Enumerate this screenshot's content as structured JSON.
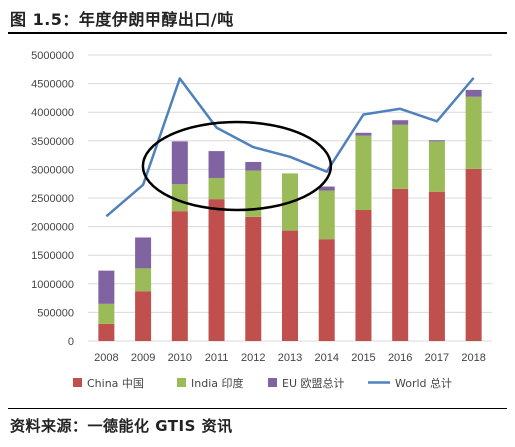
{
  "title": "图 1.5：年度伊朗甲醇出口/吨",
  "source": "资料来源：一德能化 GTIS 资讯",
  "colors": {
    "china": "#c0504d",
    "india": "#9bbb59",
    "eu": "#8064a2",
    "world": "#4f81bd",
    "grid": "#d9d9d9",
    "annotation": "#000000"
  },
  "chart_data": {
    "type": "bar",
    "stacked": true,
    "categories": [
      "2008",
      "2009",
      "2010",
      "2011",
      "2012",
      "2013",
      "2014",
      "2015",
      "2016",
      "2017",
      "2018"
    ],
    "series": [
      {
        "name": "China 中国",
        "type": "bar",
        "values": [
          300000,
          870000,
          2270000,
          2480000,
          2170000,
          1930000,
          1780000,
          2290000,
          2660000,
          2610000,
          3010000
        ]
      },
      {
        "name": "India 印度",
        "type": "bar",
        "values": [
          350000,
          400000,
          470000,
          370000,
          810000,
          1000000,
          850000,
          1300000,
          1120000,
          880000,
          1260000
        ]
      },
      {
        "name": "EU 欧盟总计",
        "type": "bar",
        "values": [
          580000,
          540000,
          750000,
          470000,
          150000,
          0,
          70000,
          50000,
          80000,
          20000,
          120000
        ]
      },
      {
        "name": "World 总计",
        "type": "line",
        "values": [
          2180000,
          2730000,
          4590000,
          3730000,
          3390000,
          3220000,
          2960000,
          3960000,
          4060000,
          3840000,
          4600000
        ]
      }
    ],
    "yticks": [
      "0",
      "500000",
      "1000000",
      "1500000",
      "2000000",
      "2500000",
      "3000000",
      "3500000",
      "4000000",
      "4500000",
      "5000000"
    ],
    "ylim": [
      0,
      5000000
    ],
    "grid": true,
    "legend": "bottom",
    "annotation": "ellipse around 2010–2013"
  }
}
